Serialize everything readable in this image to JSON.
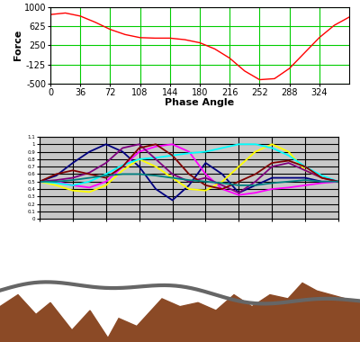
{
  "chart_data": [
    {
      "type": "line",
      "x_label": "Phase Angle",
      "y_label": "Force",
      "x": [
        0,
        18,
        36,
        54,
        72,
        90,
        108,
        126,
        144,
        162,
        180,
        198,
        216,
        234,
        252,
        270,
        288,
        306,
        324,
        342,
        360
      ],
      "series": [
        {
          "color": "#ff0000",
          "values": [
            850,
            880,
            820,
            700,
            560,
            460,
            400,
            390,
            390,
            360,
            300,
            180,
            0,
            -250,
            -420,
            -400,
            -200,
            100,
            400,
            640,
            800
          ]
        }
      ],
      "xlim": [
        0,
        360
      ],
      "xticks": [
        0,
        36,
        72,
        108,
        144,
        180,
        216,
        252,
        288,
        324
      ],
      "ylim": [
        -500,
        1000
      ],
      "yticks": [
        -500,
        -125,
        250,
        625,
        1000
      ],
      "grid": true
    },
    {
      "type": "line",
      "x": [
        0,
        20,
        40,
        60,
        80,
        100,
        120,
        140,
        160,
        180,
        200,
        220,
        240,
        260,
        280,
        300,
        320,
        340,
        360
      ],
      "series": [
        {
          "color": "#000080",
          "values": [
            0.5,
            0.58,
            0.75,
            0.9,
            1.0,
            0.9,
            0.7,
            0.4,
            0.25,
            0.45,
            0.75,
            0.6,
            0.35,
            0.45,
            0.55,
            0.55,
            0.55,
            0.5,
            0.5
          ]
        },
        {
          "color": "#ff00ff",
          "values": [
            0.5,
            0.5,
            0.45,
            0.42,
            0.5,
            0.7,
            0.9,
            0.97,
            1.0,
            0.9,
            0.6,
            0.4,
            0.32,
            0.35,
            0.4,
            0.42,
            0.45,
            0.48,
            0.5
          ]
        },
        {
          "color": "#ffff00",
          "values": [
            0.5,
            0.45,
            0.38,
            0.36,
            0.45,
            0.65,
            0.8,
            0.7,
            0.55,
            0.4,
            0.38,
            0.5,
            0.7,
            0.9,
            1.0,
            0.9,
            0.65,
            0.55,
            0.5
          ]
        },
        {
          "color": "#00ffff",
          "values": [
            0.5,
            0.48,
            0.45,
            0.5,
            0.6,
            0.72,
            0.8,
            0.82,
            0.85,
            0.88,
            0.9,
            0.95,
            1.0,
            1.0,
            0.95,
            0.85,
            0.7,
            0.58,
            0.5
          ]
        },
        {
          "color": "#800080",
          "values": [
            0.5,
            0.52,
            0.55,
            0.62,
            0.75,
            0.95,
            1.0,
            0.8,
            0.6,
            0.5,
            0.55,
            0.45,
            0.35,
            0.5,
            0.7,
            0.75,
            0.65,
            0.55,
            0.5
          ]
        },
        {
          "color": "#800000",
          "values": [
            0.5,
            0.6,
            0.65,
            0.6,
            0.55,
            0.7,
            0.95,
            1.0,
            0.85,
            0.6,
            0.45,
            0.4,
            0.5,
            0.6,
            0.75,
            0.78,
            0.7,
            0.55,
            0.5
          ]
        },
        {
          "color": "#008080",
          "values": [
            0.5,
            0.5,
            0.52,
            0.55,
            0.58,
            0.6,
            0.6,
            0.58,
            0.55,
            0.52,
            0.5,
            0.48,
            0.45,
            0.45,
            0.48,
            0.5,
            0.52,
            0.5,
            0.5
          ]
        }
      ],
      "xlim": [
        0,
        360
      ],
      "xticks": [
        0,
        40,
        80,
        120,
        160,
        200,
        240,
        280,
        320,
        360
      ],
      "ylim": [
        0,
        1.1
      ],
      "yticks": [
        0,
        0.1,
        0.2,
        0.3,
        0.4,
        0.5,
        0.6,
        0.7,
        0.8,
        0.9,
        1,
        1.1
      ],
      "grid": true,
      "tick_labels": "y"
    }
  ]
}
